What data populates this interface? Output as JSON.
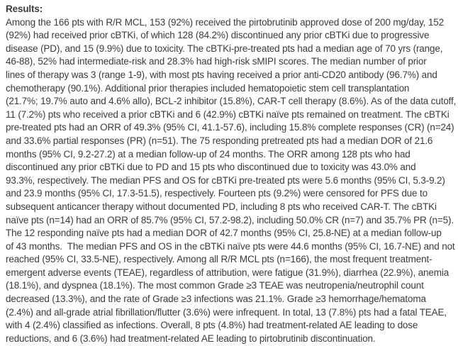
{
  "page": {
    "background_color": "#ffffff",
    "text_color": "#3b3b3b"
  },
  "results": {
    "heading": "Results:",
    "lines": [
      "Among the 166 pts with R/R MCL, 153 (92%) received the pirtobrutinib approved dose of 200 mg/day, 152",
      "(92%) had received prior cBTKi, of which 128 (84.2%) discontinued any prior cBTKi due to progressive",
      "disease (PD), and 15 (9.9%) due to toxicity. The cBTKi-pre-treated pts had a median age of 70 yrs (range,",
      "46-88), 52% had intermediate-risk and 28.3% had high-risk sMIPI scores. The median number of prior",
      "lines of therapy was 3 (range 1-9), with most pts having received a prior anti-CD20 antibody (96.7%) and",
      "chemotherapy (90.1%). Additional prior therapies included hematopoietic stem cell transplantation",
      "(21.7%; 19.7% auto and 4.6% allo), BCL-2 inhibitor (15.8%), CAR-T cell therapy (8.6%). As of the data cutoff,",
      "11 (7.2%) pts who received a prior cBTKi and 6 (42.9%) cBTKi naïve pts remained on treatment. The cBTKi",
      "pre-treated pts had an ORR of 49.3% (95% CI, 41.1-57.6), including 15.8% complete responses (CR) (n=24)",
      "and 33.6% partial responses (PR) (n=51). The 75 responding pretreated pts had a median DOR of 21.6",
      "months (95% CI, 9.2-27.2) at a median follow-up of 24 months. The ORR among 128 pts who had",
      "discontinued any prior cBTKi due to PD and 15 pts who discontinued due to toxicity was 43.0% and",
      "93.3%, respectively. The median PFS and OS for cBTKi pre-treated pts were 5.6 months (95% CI, 5.3-9.2)",
      "and 23.9 months (95% CI, 17.3-51.5), respectively. Fourteen pts (9.2%) were censored for PFS due to",
      "subsequent anticancer therapy without documented PD, including 8 pts who received CAR-T. The cBTKi",
      "naïve pts (n=14) had an ORR of 85.7% (95% CI, 57.2-98.2), including 50.0% CR (n=7) and 35.7% PR (n=5).",
      "The 12 responding naïve pts had a median DOR of 42.7 months (95% CI, 25.8-NE) at a median follow-up",
      "of 43 months.  The median PFS and OS in the cBTKi naïve pts were 44.6 months (95% CI, 16.7-NE) and not",
      "reached (95% CI, 33.5-NE), respectively. Among all R/R MCL pts (n=166), the most frequent treatment-",
      "emergent adverse events (TEAE), regardless of attribution, were fatigue (31.9%), diarrhea (22.9%), anemia",
      "(18.1%), and dyspnea (18.1%). The most common Grade ≥3 TEAE was neutropenia/neutrophil count",
      "decreased (13.3%), and the rate of Grade ≥3 infections was 21.1%. Grade ≥3 hemorrhage/hematoma",
      "(2.4%) and all-grade atrial fibrillation/flutter (3.6%) were infrequent. In total, 13 (7.8%) pts had a fatal TEAE,",
      "with 4 (2.4%) classified as infections. Overall, 8 pts (4.8%) had treatment-related AE leading to dose",
      "reductions, and 6 (3.6%) had treatment-related AE leading to pirtobrutinib discontinuation."
    ]
  }
}
